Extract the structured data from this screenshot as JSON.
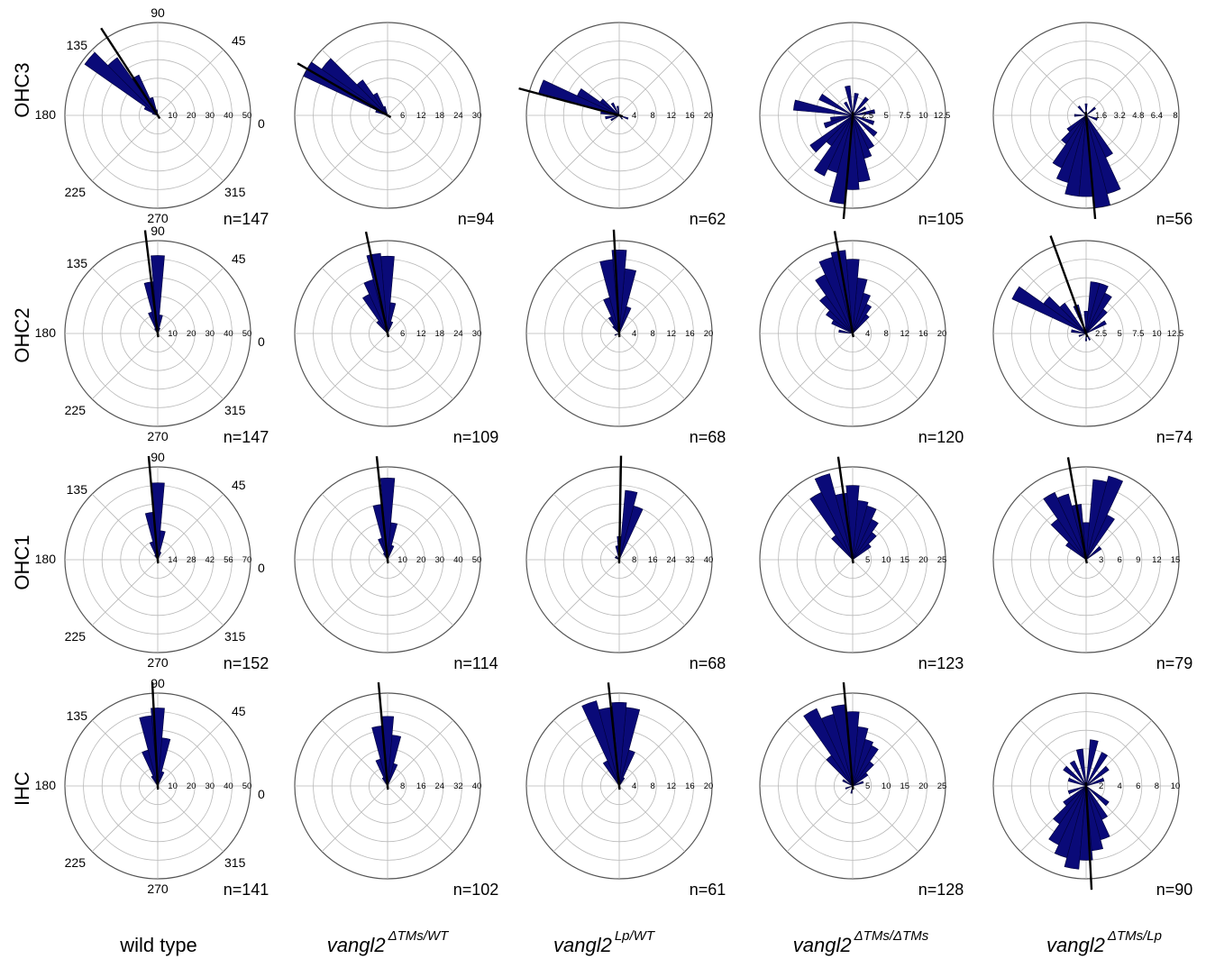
{
  "figure": {
    "row_labels": [
      "OHC3",
      "OHC2",
      "OHC1",
      "IHC"
    ],
    "col_labels": [
      {
        "base": "wild type",
        "sup": ""
      },
      {
        "base": "vangl2",
        "sup": "ΔTMs/WT"
      },
      {
        "base": "vangl2",
        "sup": "Lp/WT"
      },
      {
        "base": "vangl2",
        "sup": "ΔTMs/ΔTMs"
      },
      {
        "base": "vangl2",
        "sup": "ΔTMs/Lp"
      }
    ],
    "angle_labels": [
      "0",
      "45",
      "90",
      "135",
      "180",
      "225",
      "270",
      "315"
    ],
    "colors": {
      "bar": "#0a0a78",
      "bar_edge": "#00003a",
      "mean_line": "#000000",
      "grid": "#b8b8b8",
      "outer_ring": "#555555"
    }
  },
  "chart_data": [
    {
      "type": "polar-histogram",
      "row": "OHC3",
      "column": "wild type",
      "n_label": "n=147",
      "rticks": [
        "10",
        "20",
        "30",
        "40",
        "50"
      ],
      "rmax": 50,
      "mean_angle": 123,
      "show_angles": true,
      "bins": [
        [
          100,
          3
        ],
        [
          110,
          10
        ],
        [
          120,
          24
        ],
        [
          130,
          38
        ],
        [
          140,
          48
        ],
        [
          150,
          8
        ],
        [
          160,
          3
        ]
      ]
    },
    {
      "type": "polar-histogram",
      "row": "OHC3",
      "column": "vangl2 ΔTMs/WT",
      "n_label": "n=94",
      "rticks": [
        "6",
        "12",
        "18",
        "24",
        "30"
      ],
      "rmax": 30,
      "mean_angle": 150,
      "show_angles": false,
      "bins": [
        [
          110,
          3
        ],
        [
          120,
          8
        ],
        [
          130,
          14
        ],
        [
          140,
          26
        ],
        [
          150,
          30
        ],
        [
          160,
          4
        ]
      ]
    },
    {
      "type": "polar-histogram",
      "row": "OHC3",
      "column": "vangl2 Lp/WT",
      "n_label": "n=62",
      "rticks": [
        "4",
        "8",
        "12",
        "16",
        "20"
      ],
      "rmax": 20,
      "mean_angle": 165,
      "show_angles": false,
      "bins": [
        [
          100,
          2
        ],
        [
          120,
          3
        ],
        [
          140,
          5
        ],
        [
          150,
          10
        ],
        [
          160,
          18
        ],
        [
          170,
          4
        ],
        [
          190,
          3
        ],
        [
          210,
          2
        ],
        [
          310,
          1
        ],
        [
          340,
          2
        ]
      ]
    },
    {
      "type": "polar-histogram",
      "row": "OHC3",
      "column": "vangl2 ΔTMs/ΔTMs",
      "n_label": "n=105",
      "rticks": [
        "2.5",
        "5",
        "7.5",
        "10",
        "12.5"
      ],
      "rmax": 12.5,
      "mean_angle": 265,
      "show_angles": false,
      "bins": [
        [
          10,
          3
        ],
        [
          30,
          2
        ],
        [
          50,
          3
        ],
        [
          80,
          3
        ],
        [
          100,
          4
        ],
        [
          120,
          2
        ],
        [
          150,
          5
        ],
        [
          170,
          8
        ],
        [
          190,
          3
        ],
        [
          200,
          4
        ],
        [
          220,
          7
        ],
        [
          230,
          5
        ],
        [
          240,
          9
        ],
        [
          250,
          8
        ],
        [
          260,
          12
        ],
        [
          270,
          10
        ],
        [
          280,
          9
        ],
        [
          290,
          6
        ],
        [
          300,
          5
        ],
        [
          320,
          4
        ],
        [
          340,
          3
        ]
      ]
    },
    {
      "type": "polar-histogram",
      "row": "OHC3",
      "column": "vangl2 ΔTMs/Lp",
      "n_label": "n=56",
      "rticks": [
        "1.6",
        "3.2",
        "4.8",
        "6.4",
        "8"
      ],
      "rmax": 8,
      "mean_angle": 275,
      "show_angles": false,
      "bins": [
        [
          40,
          1
        ],
        [
          90,
          1
        ],
        [
          130,
          1
        ],
        [
          180,
          1
        ],
        [
          220,
          2
        ],
        [
          230,
          3
        ],
        [
          240,
          5
        ],
        [
          250,
          6
        ],
        [
          260,
          7
        ],
        [
          270,
          7
        ],
        [
          280,
          8
        ],
        [
          290,
          7
        ],
        [
          300,
          4
        ],
        [
          340,
          1
        ]
      ]
    },
    {
      "type": "polar-histogram",
      "row": "OHC2",
      "column": "wild type",
      "n_label": "n=147",
      "rticks": [
        "10",
        "20",
        "30",
        "40",
        "50"
      ],
      "rmax": 50,
      "mean_angle": 97,
      "show_angles": true,
      "bins": [
        [
          70,
          3
        ],
        [
          80,
          10
        ],
        [
          90,
          42
        ],
        [
          100,
          28
        ],
        [
          110,
          12
        ],
        [
          120,
          3
        ]
      ]
    },
    {
      "type": "polar-histogram",
      "row": "OHC2",
      "column": "vangl2 ΔTMs/WT",
      "n_label": "n=109",
      "rticks": [
        "6",
        "12",
        "18",
        "24",
        "30"
      ],
      "rmax": 30,
      "mean_angle": 102,
      "show_angles": false,
      "bins": [
        [
          70,
          4
        ],
        [
          80,
          10
        ],
        [
          90,
          25
        ],
        [
          100,
          26
        ],
        [
          110,
          18
        ],
        [
          120,
          14
        ],
        [
          130,
          5
        ]
      ]
    },
    {
      "type": "polar-histogram",
      "row": "OHC2",
      "column": "vangl2 Lp/WT",
      "n_label": "n=68",
      "rticks": [
        "4",
        "8",
        "12",
        "16",
        "20"
      ],
      "rmax": 20,
      "mean_angle": 93,
      "show_angles": false,
      "bins": [
        [
          70,
          6
        ],
        [
          80,
          14
        ],
        [
          90,
          18
        ],
        [
          100,
          16
        ],
        [
          110,
          8
        ],
        [
          120,
          4
        ],
        [
          130,
          2
        ],
        [
          200,
          1
        ]
      ]
    },
    {
      "type": "polar-histogram",
      "row": "OHC2",
      "column": "vangl2 ΔTMs/ΔTMs",
      "n_label": "n=120",
      "rticks": [
        "4",
        "8",
        "12",
        "16",
        "20"
      ],
      "rmax": 20,
      "mean_angle": 100,
      "show_angles": false,
      "bins": [
        [
          50,
          5
        ],
        [
          60,
          7
        ],
        [
          70,
          9
        ],
        [
          80,
          12
        ],
        [
          90,
          16
        ],
        [
          100,
          18
        ],
        [
          110,
          17
        ],
        [
          120,
          14
        ],
        [
          130,
          10
        ],
        [
          140,
          7
        ],
        [
          150,
          5
        ],
        [
          170,
          3
        ]
      ]
    },
    {
      "type": "polar-histogram",
      "row": "OHC2",
      "column": "vangl2 ΔTMs/Lp",
      "n_label": "n=74",
      "rticks": [
        "2.5",
        "5",
        "7.5",
        "10",
        "12.5"
      ],
      "rmax": 12.5,
      "mean_angle": 110,
      "show_angles": false,
      "bins": [
        [
          30,
          3
        ],
        [
          50,
          4
        ],
        [
          60,
          6
        ],
        [
          70,
          7
        ],
        [
          80,
          7
        ],
        [
          90,
          3
        ],
        [
          110,
          4
        ],
        [
          130,
          5
        ],
        [
          140,
          7
        ],
        [
          150,
          11
        ],
        [
          170,
          2
        ],
        [
          200,
          1
        ],
        [
          270,
          1
        ],
        [
          300,
          1
        ]
      ]
    },
    {
      "type": "polar-histogram",
      "row": "OHC1",
      "column": "wild type",
      "n_label": "n=152",
      "rticks": [
        "14",
        "28",
        "42",
        "56",
        "70"
      ],
      "rmax": 70,
      "mean_angle": 95,
      "show_angles": true,
      "bins": [
        [
          70,
          6
        ],
        [
          80,
          22
        ],
        [
          90,
          58
        ],
        [
          100,
          36
        ],
        [
          110,
          14
        ],
        [
          120,
          4
        ]
      ]
    },
    {
      "type": "polar-histogram",
      "row": "OHC1",
      "column": "vangl2 ΔTMs/WT",
      "n_label": "n=114",
      "rticks": [
        "10",
        "20",
        "30",
        "40",
        "50"
      ],
      "rmax": 50,
      "mean_angle": 96,
      "show_angles": false,
      "bins": [
        [
          70,
          8
        ],
        [
          80,
          20
        ],
        [
          90,
          44
        ],
        [
          100,
          30
        ],
        [
          110,
          12
        ],
        [
          120,
          4
        ]
      ]
    },
    {
      "type": "polar-histogram",
      "row": "OHC1",
      "column": "vangl2 Lp/WT",
      "n_label": "n=68",
      "rticks": [
        "8",
        "16",
        "24",
        "32",
        "40"
      ],
      "rmax": 40,
      "mean_angle": 89,
      "show_angles": false,
      "bins": [
        [
          70,
          24
        ],
        [
          80,
          30
        ],
        [
          90,
          10
        ],
        [
          100,
          6
        ],
        [
          130,
          2
        ],
        [
          150,
          2
        ]
      ]
    },
    {
      "type": "polar-histogram",
      "row": "OHC1",
      "column": "vangl2 ΔTMs/ΔTMs",
      "n_label": "n=123",
      "rticks": [
        "5",
        "10",
        "15",
        "20",
        "25"
      ],
      "rmax": 25,
      "mean_angle": 98,
      "show_angles": false,
      "bins": [
        [
          40,
          6
        ],
        [
          50,
          9
        ],
        [
          60,
          12
        ],
        [
          70,
          15
        ],
        [
          80,
          16
        ],
        [
          90,
          20
        ],
        [
          100,
          18
        ],
        [
          110,
          24
        ],
        [
          120,
          20
        ],
        [
          130,
          8
        ]
      ]
    },
    {
      "type": "polar-histogram",
      "row": "OHC1",
      "column": "vangl2 ΔTMs/Lp",
      "n_label": "n=79",
      "rticks": [
        "3",
        "6",
        "9",
        "12",
        "15"
      ],
      "rmax": 15,
      "mean_angle": 100,
      "show_angles": false,
      "bins": [
        [
          40,
          3
        ],
        [
          60,
          8
        ],
        [
          70,
          14
        ],
        [
          80,
          13
        ],
        [
          90,
          6
        ],
        [
          100,
          9
        ],
        [
          110,
          11
        ],
        [
          120,
          12
        ],
        [
          130,
          8
        ],
        [
          140,
          4
        ]
      ]
    },
    {
      "type": "polar-histogram",
      "row": "IHC",
      "column": "wild type",
      "n_label": "n=141",
      "rticks": [
        "10",
        "20",
        "30",
        "40",
        "50"
      ],
      "rmax": 50,
      "mean_angle": 93,
      "show_angles": true,
      "bins": [
        [
          70,
          8
        ],
        [
          80,
          26
        ],
        [
          90,
          42
        ],
        [
          100,
          38
        ],
        [
          110,
          20
        ],
        [
          120,
          6
        ]
      ]
    },
    {
      "type": "polar-histogram",
      "row": "IHC",
      "column": "vangl2 ΔTMs/WT",
      "n_label": "n=102",
      "rticks": [
        "8",
        "16",
        "24",
        "32",
        "40"
      ],
      "rmax": 40,
      "mean_angle": 95,
      "show_angles": false,
      "bins": [
        [
          70,
          10
        ],
        [
          80,
          22
        ],
        [
          90,
          30
        ],
        [
          100,
          26
        ],
        [
          110,
          12
        ],
        [
          120,
          4
        ]
      ]
    },
    {
      "type": "polar-histogram",
      "row": "IHC",
      "column": "vangl2 Lp/WT",
      "n_label": "n=61",
      "rticks": [
        "4",
        "8",
        "12",
        "16",
        "20"
      ],
      "rmax": 20,
      "mean_angle": 96,
      "show_angles": false,
      "bins": [
        [
          60,
          2
        ],
        [
          70,
          8
        ],
        [
          80,
          17
        ],
        [
          90,
          18
        ],
        [
          100,
          17
        ],
        [
          110,
          19
        ],
        [
          120,
          6
        ]
      ]
    },
    {
      "type": "polar-histogram",
      "row": "IHC",
      "column": "vangl2 ΔTMs/ΔTMs",
      "n_label": "n=128",
      "rticks": [
        "5",
        "10",
        "15",
        "20",
        "25"
      ],
      "rmax": 25,
      "mean_angle": 95,
      "show_angles": false,
      "bins": [
        [
          20,
          3
        ],
        [
          40,
          5
        ],
        [
          50,
          8
        ],
        [
          60,
          12
        ],
        [
          70,
          13
        ],
        [
          80,
          16
        ],
        [
          90,
          20
        ],
        [
          100,
          22
        ],
        [
          110,
          20
        ],
        [
          120,
          23
        ],
        [
          130,
          10
        ],
        [
          150,
          3
        ],
        [
          200,
          2
        ],
        [
          260,
          2
        ]
      ]
    },
    {
      "type": "polar-histogram",
      "row": "IHC",
      "column": "vangl2 ΔTMs/Lp",
      "n_label": "n=90",
      "rticks": [
        "2",
        "4",
        "6",
        "8",
        "10"
      ],
      "rmax": 10,
      "mean_angle": 273,
      "show_angles": false,
      "bins": [
        [
          20,
          2
        ],
        [
          40,
          3
        ],
        [
          60,
          4
        ],
        [
          80,
          5
        ],
        [
          100,
          4
        ],
        [
          120,
          3
        ],
        [
          140,
          3
        ],
        [
          160,
          2
        ],
        [
          200,
          2
        ],
        [
          220,
          3
        ],
        [
          230,
          5
        ],
        [
          240,
          7
        ],
        [
          250,
          8
        ],
        [
          260,
          9
        ],
        [
          270,
          8
        ],
        [
          280,
          7
        ],
        [
          290,
          6
        ],
        [
          300,
          4
        ],
        [
          320,
          3
        ]
      ]
    }
  ]
}
